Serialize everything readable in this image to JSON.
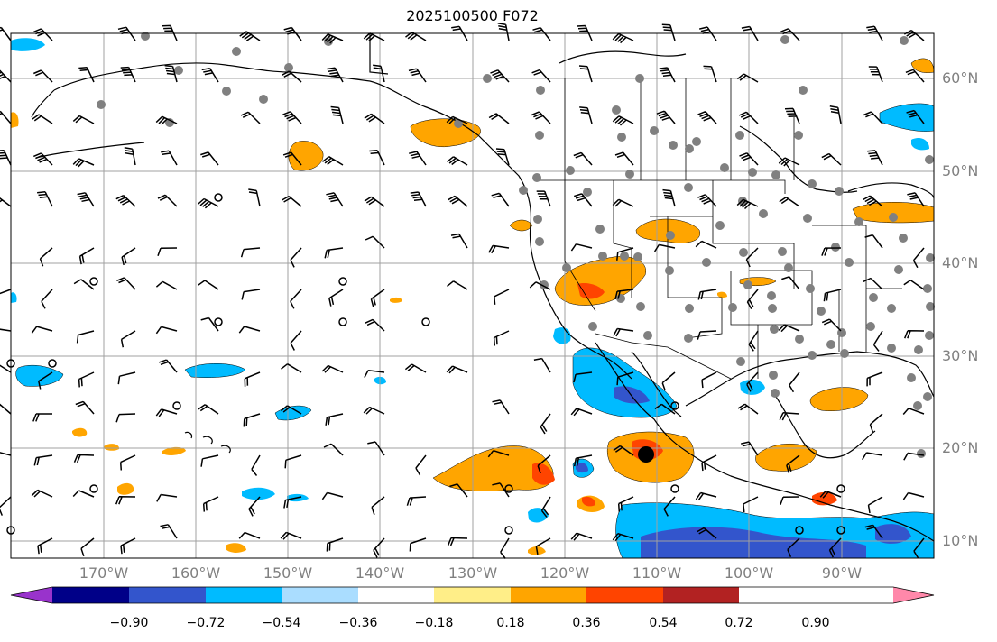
{
  "title": "2025100500 F072",
  "lat_labels": [
    "60°N",
    "50°N",
    "40°N",
    "30°N",
    "20°N",
    "10°N"
  ],
  "lon_labels": [
    "170°W",
    "160°W",
    "150°W",
    "140°W",
    "130°W",
    "120°W",
    "110°W",
    "100°W",
    "90°W"
  ],
  "colorbar": {
    "ticks": [
      "−0.90",
      "−0.72",
      "−0.54",
      "−0.36",
      "−0.18",
      "0.18",
      "0.36",
      "0.54",
      "0.72",
      "0.90"
    ],
    "colors": [
      "#9933cc",
      "#000088",
      "#3355cc",
      "#00bbff",
      "#aaddff",
      "#ffffff",
      "#ffee88",
      "#ffa500",
      "#ff4400",
      "#b22222",
      "#ff88aa"
    ]
  },
  "map": {
    "lon_range": [
      -180,
      -80
    ],
    "lat_range": [
      8,
      65
    ],
    "gridlines": true,
    "features": [
      "coastlines",
      "borders",
      "us-states",
      "station-dots",
      "wind-barbs",
      "shaded-anomaly-contours"
    ]
  }
}
